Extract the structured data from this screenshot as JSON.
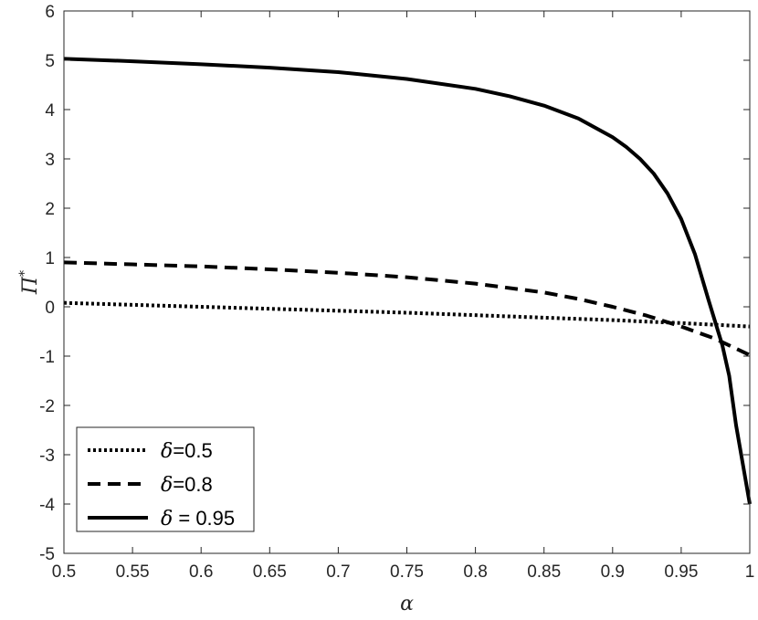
{
  "chart_data": {
    "type": "line",
    "xlabel": "α",
    "ylabel": "Π",
    "ylabel_superscript": "*",
    "xlim": [
      0.5,
      1.0
    ],
    "ylim": [
      -5,
      6
    ],
    "xticks": [
      "0.5",
      "0.55",
      "0.6",
      "0.65",
      "0.7",
      "0.75",
      "0.8",
      "0.85",
      "0.9",
      "0.95",
      "1"
    ],
    "yticks": [
      "-5",
      "-4",
      "-3",
      "-2",
      "-1",
      "0",
      "1",
      "2",
      "3",
      "4",
      "5",
      "6"
    ],
    "grid": false,
    "legend_position": "bottom-left",
    "series": [
      {
        "name": "δ=0.5",
        "legend_symbol": "δ",
        "legend_suffix": "=0.5",
        "style": "dotted",
        "x": [
          0.5,
          0.55,
          0.6,
          0.65,
          0.7,
          0.75,
          0.8,
          0.85,
          0.9,
          0.95,
          1.0
        ],
        "y": [
          0.08,
          0.04,
          0.0,
          -0.04,
          -0.08,
          -0.12,
          -0.17,
          -0.22,
          -0.27,
          -0.33,
          -0.4
        ]
      },
      {
        "name": "δ=0.8",
        "legend_symbol": "δ",
        "legend_suffix": "=0.8",
        "style": "dashed",
        "x": [
          0.5,
          0.55,
          0.6,
          0.65,
          0.7,
          0.75,
          0.8,
          0.85,
          0.875,
          0.9,
          0.925,
          0.95,
          0.975,
          1.0
        ],
        "y": [
          0.9,
          0.86,
          0.82,
          0.76,
          0.69,
          0.6,
          0.47,
          0.29,
          0.16,
          0.0,
          -0.18,
          -0.4,
          -0.65,
          -0.98
        ]
      },
      {
        "name": "δ = 0.95",
        "legend_symbol": "δ",
        "legend_suffix": " = 0.95",
        "style": "solid",
        "x": [
          0.5,
          0.55,
          0.6,
          0.65,
          0.7,
          0.75,
          0.8,
          0.825,
          0.85,
          0.875,
          0.9,
          0.91,
          0.92,
          0.93,
          0.94,
          0.95,
          0.96,
          0.97,
          0.98,
          0.985,
          0.99,
          1.0
        ],
        "y": [
          5.03,
          4.98,
          4.92,
          4.85,
          4.76,
          4.62,
          4.42,
          4.27,
          4.08,
          3.82,
          3.44,
          3.24,
          3.0,
          2.7,
          2.3,
          1.78,
          1.07,
          0.13,
          -0.78,
          -1.4,
          -2.4,
          -4.0
        ]
      }
    ]
  }
}
